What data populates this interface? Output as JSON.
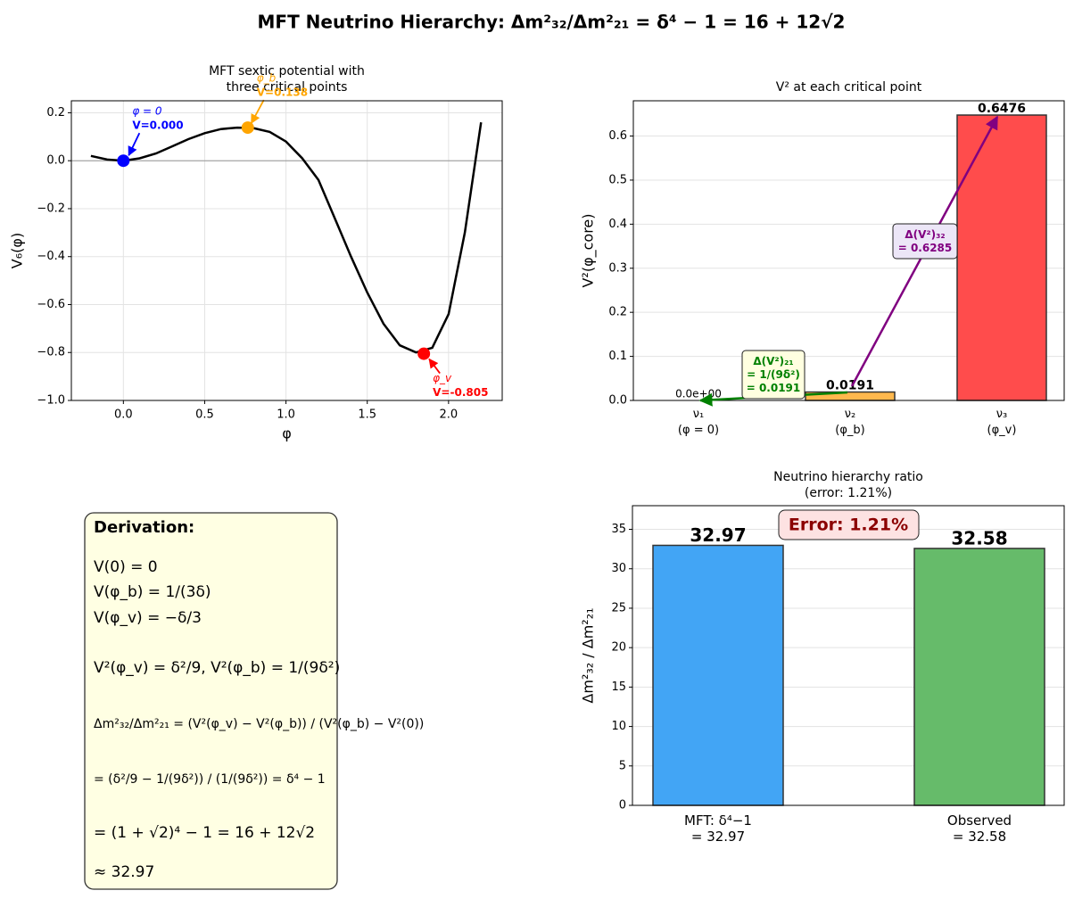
{
  "title": "MFT Neutrino Hierarchy: Δm²₃₂/Δm²₂₁ = δ⁴ − 1 = 16 + 12√2",
  "derivation": {
    "title": "Derivation:",
    "lines": [
      "V(0) = 0",
      "V(φ_b) = 1/(3δ)",
      "V(φ_v) = −δ/3",
      "V²(φ_v) = δ²/9,    V²(φ_b) = 1/(9δ²)",
      "Δm²₃₂/Δm²₂₁ = (V²(φ_v) − V²(φ_b)) / (V²(φ_b) − V²(0))",
      "= (δ²/9 − 1/(9δ²)) / (1/(9δ²)) = δ⁴ − 1",
      "= (1 + √2)⁴ − 1 = 16 + 12√2",
      "≈ 32.97"
    ]
  },
  "chart_data": [
    {
      "type": "line",
      "title": "MFT sextic potential with\nthree critical points",
      "x_label": "φ",
      "y_label": "V₆(φ)",
      "color": "#000000",
      "grid": true,
      "x": [
        -0.2,
        -0.1,
        0,
        0.1,
        0.2,
        0.3,
        0.4,
        0.5,
        0.6,
        0.7,
        0.8,
        0.9,
        1.0,
        1.1,
        1.2,
        1.3,
        1.4,
        1.5,
        1.6,
        1.7,
        1.8,
        1.9,
        2.0,
        2.1,
        2.2
      ],
      "values": [
        0.02,
        0.005,
        0,
        0.01,
        0.03,
        0.06,
        0.09,
        0.115,
        0.132,
        0.138,
        0.136,
        0.12,
        0.08,
        0.01,
        -0.08,
        -0.24,
        -0.4,
        -0.55,
        -0.68,
        -0.77,
        -0.8,
        -0.78,
        -0.64,
        -0.3,
        0.16
      ],
      "points": {
        "x": [
          0,
          0.765,
          1.848
        ],
        "values": [
          0,
          0.138,
          -0.805
        ],
        "colors": [
          "#0000ff",
          "#ffa500",
          "#ff0000"
        ],
        "labels": [
          "φ = 0",
          "φ_b",
          "φ_v"
        ],
        "value_labels": [
          "V=0.000",
          "V=0.138",
          "V=-0.805"
        ]
      },
      "xlim": [
        -0.32,
        2.33
      ],
      "xticks": [
        {
          "value": 0,
          "label": "0.0"
        },
        {
          "value": 0.5,
          "label": "0.5"
        },
        {
          "value": 1,
          "label": "1.0"
        },
        {
          "value": 1.5,
          "label": "1.5"
        },
        {
          "value": 2,
          "label": "2.0"
        }
      ],
      "ylim": [
        -1,
        0.25
      ],
      "yticks": [
        {
          "value": -1,
          "label": "−1.0"
        },
        {
          "value": -0.8,
          "label": "−0.8"
        },
        {
          "value": -0.6,
          "label": "−0.6"
        },
        {
          "value": -0.4,
          "label": "−0.4"
        },
        {
          "value": -0.2,
          "label": "−0.2"
        },
        {
          "value": 0,
          "label": "0.0"
        },
        {
          "value": 0.2,
          "label": "0.2"
        }
      ]
    },
    {
      "type": "bar",
      "title": "V² at each critical point",
      "y_label": "V²(φ_core)",
      "grid": true,
      "categories": [
        "ν₁\n(φ = 0)",
        "ν₂\n(φ_b)",
        "ν₃\n(φ_v)"
      ],
      "values": [
        0,
        0.0191,
        0.6476
      ],
      "value_labels": [
        "0.0e+00",
        "0.0191",
        "0.6476"
      ],
      "colors": [
        "#4da6ff",
        "#ffb84d",
        "#ff4c4c"
      ],
      "annotations": [
        {
          "text": "Δ(V²)₂₁\n= 1/(9δ²)\n= 0.0191",
          "color": "#008000"
        },
        {
          "text": "Δ(V²)₃₂\n= 0.6285",
          "color": "#800080"
        }
      ],
      "ylim": [
        0,
        0.68
      ],
      "yticks": [
        {
          "value": 0,
          "label": "0.0"
        },
        {
          "value": 0.1,
          "label": "0.1"
        },
        {
          "value": 0.2,
          "label": "0.2"
        },
        {
          "value": 0.3,
          "label": "0.3"
        },
        {
          "value": 0.4,
          "label": "0.4"
        },
        {
          "value": 0.5,
          "label": "0.5"
        },
        {
          "value": 0.6,
          "label": "0.6"
        }
      ]
    },
    {
      "type": "bar",
      "title": "Neutrino hierarchy ratio\n(error: 1.21%)",
      "y_label": "Δm²₃₂ / Δm²₂₁",
      "grid": true,
      "categories": [
        "MFT: δ⁴−1\n= 32.97",
        "Observed\n= 32.58"
      ],
      "values": [
        32.97,
        32.58
      ],
      "colors": [
        "#42a5f5",
        "#66bb6a"
      ],
      "annotations": [
        {
          "text": "Error: 1.21%",
          "color": "#8b0000"
        }
      ],
      "ylim": [
        0,
        38
      ],
      "yticks": [
        0,
        5,
        10,
        15,
        20,
        25,
        30,
        35
      ]
    }
  ]
}
